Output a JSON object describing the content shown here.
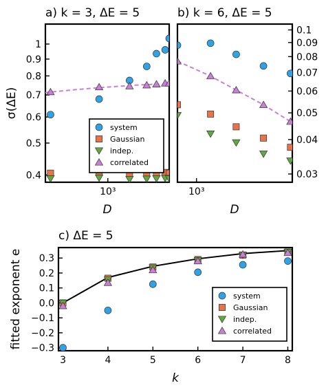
{
  "colors": {
    "system": "#2ea3e6",
    "gaussian": "#e8724a",
    "indep": "#5faa3f",
    "correlated": "#c97fd6",
    "fit_dashed": "#c97fd6",
    "fit_solid": "#000000"
  },
  "chart_data": [
    {
      "panel": "a",
      "type": "scatter",
      "title": "a) k = 3, ΔE = 5",
      "xlabel": "D",
      "ylabel": "σ(ΔE)",
      "xscale": "log",
      "yscale": "log",
      "xlim": [
        470,
        2100
      ],
      "ylim": [
        0.38,
        1.15
      ],
      "xticks": [
        {
          "value": 1000,
          "label": "10³"
        }
      ],
      "yticks": [
        {
          "value": 0.4,
          "label": "0.4"
        },
        {
          "value": 0.5,
          "label": "0.5"
        },
        {
          "value": 0.6,
          "label": "0.6"
        },
        {
          "value": 0.7,
          "label": "0.7"
        },
        {
          "value": 0.8,
          "label": "0.8"
        },
        {
          "value": 0.9,
          "label": "0.9"
        },
        {
          "value": 1.0,
          "label": "1"
        }
      ],
      "x": [
        500,
        900,
        1300,
        1600,
        1800,
        2000,
        2100
      ],
      "series": [
        {
          "name": "system",
          "marker": "circle",
          "values": [
            0.61,
            0.68,
            0.775,
            0.855,
            0.935,
            0.96,
            1.04
          ]
        },
        {
          "name": "Gaussian",
          "marker": "square",
          "values": [
            0.405,
            0.408,
            0.404,
            0.406,
            0.405,
            0.407,
            0.405
          ]
        },
        {
          "name": "indep.",
          "marker": "triangle-down",
          "values": [
            0.39,
            0.392,
            0.388,
            0.389,
            0.39,
            0.391,
            0.39
          ]
        },
        {
          "name": "correlated",
          "marker": "triangle-up",
          "values": [
            0.715,
            0.74,
            0.745,
            0.75,
            0.755,
            0.76,
            0.76
          ]
        }
      ],
      "fit_line": {
        "style": "dashed",
        "x": [
          470,
          700,
          1000,
          1400,
          1800,
          2100
        ],
        "y": [
          0.712,
          0.728,
          0.74,
          0.75,
          0.755,
          0.752
        ]
      },
      "legend": {
        "position": "lower-right",
        "entries": [
          "system",
          "Gaussian",
          "indep.",
          "correlated"
        ]
      }
    },
    {
      "panel": "b",
      "type": "scatter",
      "title": "b) k = 6, ΔE = 5",
      "xlabel": "D",
      "ylabel": "",
      "xscale": "log",
      "yscale": "log",
      "yaxis_side": "right",
      "xlim": [
        700,
        6000
      ],
      "ylim": [
        0.028,
        0.105
      ],
      "xticks": [
        {
          "value": 1000,
          "label": "10³"
        }
      ],
      "yticks": [
        {
          "value": 0.03,
          "label": "0.03"
        },
        {
          "value": 0.04,
          "label": "0.04"
        },
        {
          "value": 0.05,
          "label": "0.05"
        },
        {
          "value": 0.06,
          "label": "0.06"
        },
        {
          "value": 0.07,
          "label": "0.07"
        },
        {
          "value": 0.08,
          "label": "0.08"
        },
        {
          "value": 0.09,
          "label": "0.09"
        },
        {
          "value": 0.1,
          "label": "0.1"
        }
      ],
      "x": [
        700,
        1300,
        2100,
        3500,
        5800
      ],
      "series": [
        {
          "name": "system",
          "marker": "circle",
          "values": [
            0.088,
            0.0895,
            0.0815,
            0.074,
            0.0695
          ]
        },
        {
          "name": "Gaussian",
          "marker": "square",
          "values": [
            0.0535,
            0.0495,
            0.0445,
            0.0405,
            0.0375
          ]
        },
        {
          "name": "indep.",
          "marker": "triangle-down",
          "values": [
            0.049,
            0.042,
            0.039,
            0.0355,
            0.0335
          ]
        },
        {
          "name": "correlated",
          "marker": "triangle-up",
          "values": [
            0.077,
            0.068,
            0.0605,
            0.0535,
            0.0465
          ]
        }
      ],
      "fit_line": {
        "style": "dashed",
        "x": [
          700,
          1300,
          2100,
          3500,
          5800
        ],
        "y": [
          0.077,
          0.068,
          0.0605,
          0.0535,
          0.0465
        ]
      }
    },
    {
      "panel": "c",
      "type": "scatter",
      "title": "c) ΔE = 5",
      "xlabel": "k",
      "ylabel": "fitted exponent e",
      "xlim": [
        2.9,
        8.1
      ],
      "ylim": [
        -0.32,
        0.37
      ],
      "xticks": [
        3,
        4,
        5,
        6,
        7,
        8
      ],
      "yticks": [
        -0.3,
        -0.2,
        -0.1,
        0.0,
        0.1,
        0.2,
        0.3
      ],
      "ytick_labels": [
        "−0.3",
        "−0.2",
        "−0.1",
        "0.0",
        "0.1",
        "0.2",
        "0.3"
      ],
      "x": [
        3,
        4,
        5,
        6,
        7,
        8
      ],
      "series": [
        {
          "name": "system",
          "marker": "circle",
          "values": [
            -0.3,
            -0.05,
            0.125,
            0.205,
            0.255,
            0.28
          ]
        },
        {
          "name": "Gaussian",
          "marker": "square",
          "values": [
            0.0,
            0.165,
            0.24,
            0.29,
            0.32,
            0.34
          ]
        },
        {
          "name": "indep.",
          "marker": "triangle-down",
          "values": [
            0.0,
            0.155,
            0.235,
            0.285,
            0.32,
            0.34
          ]
        },
        {
          "name": "correlated",
          "marker": "triangle-up",
          "values": [
            -0.02,
            0.135,
            0.22,
            0.28,
            0.325,
            0.335
          ]
        }
      ],
      "fit_line": {
        "style": "solid",
        "x": [
          3,
          4,
          5,
          6,
          7,
          8
        ],
        "y": [
          0.0,
          0.17,
          0.245,
          0.295,
          0.33,
          0.35
        ]
      },
      "legend": {
        "position": "lower-right",
        "entries": [
          "system",
          "Gaussian",
          "indep.",
          "correlated"
        ]
      }
    }
  ]
}
